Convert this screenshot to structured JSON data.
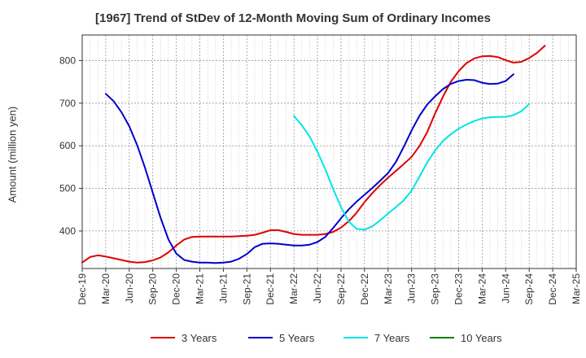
{
  "chart_data": {
    "type": "line",
    "title": "[1967]  Trend of StDev of 12-Month Moving Sum of Ordinary Incomes",
    "xlabel": "",
    "ylabel": "Amount (million yen)",
    "ylim": [
      312,
      860
    ],
    "yticks": [
      400,
      500,
      600,
      700,
      800
    ],
    "x_tick_labels": [
      "Dec-19",
      "Mar-20",
      "Jun-20",
      "Sep-20",
      "Dec-20",
      "Mar-21",
      "Jun-21",
      "Sep-21",
      "Dec-21",
      "Mar-22",
      "Jun-22",
      "Sep-22",
      "Dec-22",
      "Mar-23",
      "Jun-23",
      "Sep-23",
      "Dec-23",
      "Mar-24",
      "Jun-24",
      "Sep-24",
      "Dec-24",
      "Mar-25"
    ],
    "x_start": "Dec-19",
    "grid": true,
    "legend_position": "bottom",
    "series": [
      {
        "name": "3 Years",
        "color": "#e00000",
        "start_month_index": 0,
        "values": [
          326,
          339,
          343,
          340,
          336,
          332,
          328,
          326,
          327,
          331,
          338,
          350,
          366,
          380,
          386,
          387,
          387,
          387,
          387,
          387,
          388,
          389,
          391,
          396,
          402,
          402,
          398,
          393,
          391,
          391,
          391,
          393,
          398,
          408,
          423,
          443,
          468,
          489,
          508,
          525,
          541,
          557,
          574,
          599,
          632,
          676,
          715,
          750,
          775,
          794,
          805,
          810,
          811,
          808,
          801,
          795,
          797,
          806,
          818,
          835
        ]
      },
      {
        "name": "5 Years",
        "color": "#0000cc",
        "start_month_index": 3,
        "values": [
          722,
          705,
          679,
          646,
          602,
          549,
          490,
          431,
          380,
          347,
          332,
          328,
          326,
          326,
          325,
          326,
          328,
          335,
          346,
          362,
          370,
          371,
          370,
          368,
          366,
          366,
          368,
          374,
          386,
          407,
          430,
          451,
          469,
          485,
          501,
          518,
          536,
          562,
          597,
          636,
          670,
          697,
          716,
          733,
          745,
          752,
          755,
          754,
          748,
          745,
          746,
          752,
          768
        ]
      },
      {
        "name": "7 Years",
        "color": "#00e5e5",
        "start_month_index": 27,
        "values": [
          670,
          648,
          622,
          586,
          545,
          499,
          456,
          422,
          405,
          403,
          411,
          425,
          441,
          456,
          472,
          495,
          527,
          561,
          589,
          611,
          627,
          640,
          650,
          658,
          664,
          667,
          668,
          668,
          672,
          681,
          698
        ]
      },
      {
        "name": "10 Years",
        "color": "#008000",
        "start_month_index": 0,
        "values": []
      }
    ]
  }
}
